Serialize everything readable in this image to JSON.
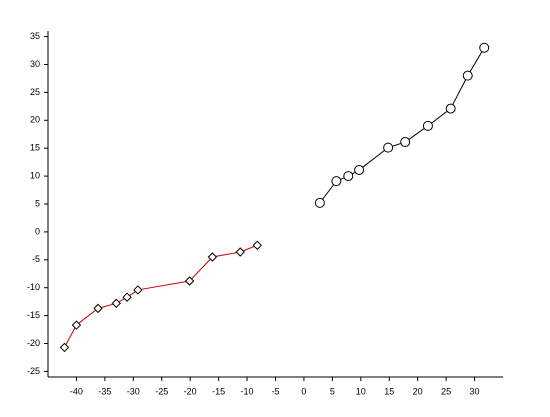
{
  "chart_data": {
    "type": "line",
    "xlim": [
      -45,
      35
    ],
    "xticks": [
      -40,
      -35,
      -30,
      -25,
      -20,
      -15,
      -10,
      -5,
      0,
      5,
      10,
      15,
      20,
      25,
      30
    ],
    "ylim": [
      -26,
      36
    ],
    "yticks": [
      -25,
      -20,
      -15,
      -10,
      -5,
      0,
      5,
      10,
      15,
      20,
      25,
      30,
      35
    ],
    "grid": false,
    "series": [
      {
        "color": "#cc0000",
        "marker": "diamond",
        "x": [
          -42.1,
          -40,
          -36.2,
          -33,
          -31.1,
          -29.2,
          -20.1,
          -16.1,
          -11.2,
          -8.2
        ],
        "values": [
          -20.7,
          -16.7,
          -13.7,
          -12.8,
          -11.7,
          -10.4,
          -8.8,
          -4.5,
          -3.6,
          -2.4
        ]
      },
      {
        "color": "#000000",
        "marker": "circle",
        "x": [
          2.8,
          5.7,
          7.8,
          9.7,
          14.8,
          17.8,
          21.8,
          25.8,
          28.8,
          31.7
        ],
        "values": [
          5.2,
          9.1,
          10,
          11.1,
          15.1,
          16.1,
          19,
          22.1,
          28,
          33
        ]
      }
    ]
  }
}
